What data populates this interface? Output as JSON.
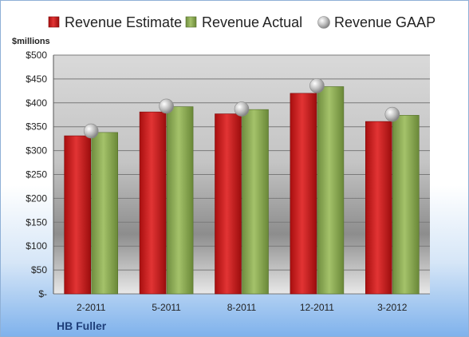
{
  "chart_data": {
    "type": "bar",
    "title": "",
    "xlabel": "",
    "ylabel": "",
    "unit_label": "$millions",
    "company": "HB Fuller",
    "categories": [
      "2-2011",
      "5-2011",
      "8-2011",
      "12-2011",
      "3-2012"
    ],
    "series": [
      {
        "name": "Revenue Estimate",
        "kind": "bar",
        "color": "#d42020",
        "values": [
          331,
          381,
          377,
          420,
          361
        ]
      },
      {
        "name": "Revenue Actual",
        "kind": "bar",
        "color": "#8fb158",
        "values": [
          338,
          392,
          386,
          434,
          374
        ]
      },
      {
        "name": "Revenue GAAP",
        "kind": "marker",
        "color": "#c8c8c8",
        "values": [
          341,
          393,
          387,
          436,
          376
        ]
      }
    ],
    "ylim": [
      0,
      500
    ],
    "yticks": [
      0,
      50,
      100,
      150,
      200,
      250,
      300,
      350,
      400,
      450,
      500
    ],
    "ytick_labels": [
      "$-",
      "$50",
      "$100",
      "$150",
      "$200",
      "$250",
      "$300",
      "$350",
      "$400",
      "$450",
      "$500"
    ],
    "grid": true,
    "legend_position": "top"
  }
}
